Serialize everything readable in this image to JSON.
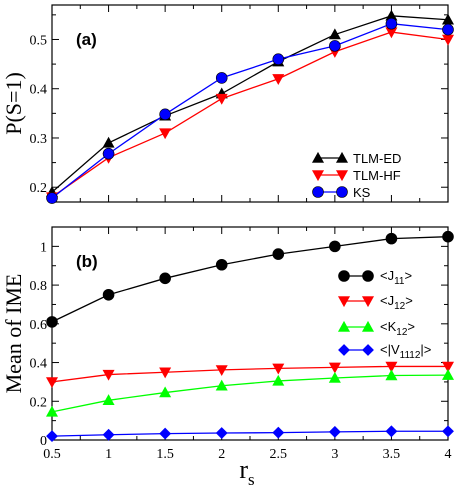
{
  "chart_data": [
    {
      "type": "line",
      "panel_label": "(a)",
      "ylabel": "P(S=1)",
      "xlim": [
        0.5,
        4
      ],
      "ylim": [
        0.17,
        0.57
      ],
      "yticks": [
        0.2,
        0.3,
        0.4,
        0.5
      ],
      "ytick_labels": [
        "0.2",
        "0.3",
        "0.4",
        "0.5"
      ],
      "grid": false,
      "legend_position": "lower-right",
      "x": [
        0.5,
        1,
        1.5,
        2,
        2.5,
        3,
        3.5,
        4
      ],
      "series": [
        {
          "name": "TLM-ED",
          "color": "#000000",
          "marker": "triangle-up",
          "values": [
            0.19,
            0.29,
            0.345,
            0.39,
            0.455,
            0.51,
            0.548,
            0.54
          ]
        },
        {
          "name": "TLM-HF",
          "color": "#ff0000",
          "marker": "triangle-down",
          "values": [
            0.18,
            0.26,
            0.31,
            0.38,
            0.42,
            0.475,
            0.515,
            0.5
          ]
        },
        {
          "name": "KS",
          "color": "#0000ff",
          "marker": "circle",
          "values": [
            0.178,
            0.268,
            0.348,
            0.422,
            0.46,
            0.487,
            0.532,
            0.52
          ]
        }
      ]
    },
    {
      "type": "line",
      "panel_label": "(b)",
      "xlabel": "r",
      "xlabel_sub": "s",
      "ylabel": "Mean of IME",
      "xlim": [
        0.5,
        4
      ],
      "ylim": [
        0,
        1.1
      ],
      "xticks": [
        0.5,
        1,
        1.5,
        2,
        2.5,
        3,
        3.5,
        4
      ],
      "xtick_labels": [
        "0.5",
        "1",
        "1.5",
        "2",
        "2.5",
        "3",
        "3.5",
        "4"
      ],
      "yticks": [
        0,
        0.2,
        0.4,
        0.6,
        0.8,
        1
      ],
      "ytick_labels": [
        "0",
        "0.2",
        "0.4",
        "0.6",
        "0.8",
        "1"
      ],
      "grid": false,
      "legend_position": "right",
      "x": [
        0.5,
        1,
        1.5,
        2,
        2.5,
        3,
        3.5,
        4
      ],
      "series": [
        {
          "name": "<J11>",
          "label_main": "<J",
          "label_sub": "11",
          "label_end": ">",
          "color": "#000000",
          "marker": "circle",
          "values": [
            0.61,
            0.75,
            0.835,
            0.905,
            0.96,
            1.0,
            1.04,
            1.05
          ]
        },
        {
          "name": "<J12>",
          "label_main": "<J",
          "label_sub": "12",
          "label_end": ">",
          "color": "#ff0000",
          "marker": "triangle-down",
          "values": [
            0.3,
            0.338,
            0.35,
            0.362,
            0.37,
            0.375,
            0.38,
            0.38
          ]
        },
        {
          "name": "<K12>",
          "label_main": "<K",
          "label_sub": "12",
          "label_end": ">",
          "color": "#00ff00",
          "marker": "triangle-up",
          "values": [
            0.145,
            0.205,
            0.245,
            0.28,
            0.305,
            0.32,
            0.333,
            0.335
          ]
        },
        {
          "name": "<|V1112|>",
          "label_main": "<|V",
          "label_sub": "1112",
          "label_end": "|>",
          "color": "#0000ff",
          "marker": "diamond",
          "values": [
            0.02,
            0.027,
            0.033,
            0.036,
            0.038,
            0.042,
            0.045,
            0.045
          ]
        }
      ]
    }
  ]
}
